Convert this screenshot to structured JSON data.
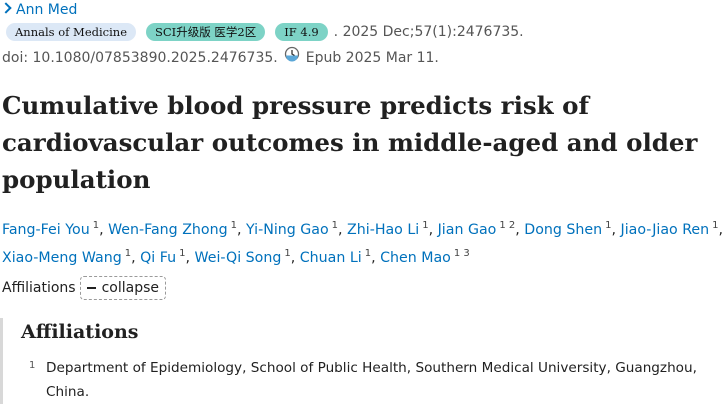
{
  "journal": {
    "link_text": "Ann Med"
  },
  "citation": {
    "badges": [
      "Annals of Medicine",
      "SCI升级版 医学2区",
      "IF 4.9"
    ],
    "text": ". 2025 Dec;57(1):2476735."
  },
  "doi": {
    "text": "doi: 10.1080/07853890.2025.2476735.",
    "epub": "Epub 2025 Mar 11."
  },
  "article": {
    "title": "Cumulative blood pressure predicts risk of cardiovascular outcomes in middle-aged and older population"
  },
  "authors": [
    {
      "name": "Fang-Fei You",
      "sup": "1"
    },
    {
      "name": "Wen-Fang Zhong",
      "sup": "1"
    },
    {
      "name": "Yi-Ning Gao",
      "sup": "1"
    },
    {
      "name": "Zhi-Hao Li",
      "sup": "1"
    },
    {
      "name": "Jian Gao",
      "sup": "1 2"
    },
    {
      "name": "Dong Shen",
      "sup": "1"
    },
    {
      "name": "Jiao-Jiao Ren",
      "sup": "1"
    },
    {
      "name": "Xiao-Meng Wang",
      "sup": "1"
    },
    {
      "name": "Qi Fu",
      "sup": "1"
    },
    {
      "name": "Wei-Qi Song",
      "sup": "1"
    },
    {
      "name": "Chuan Li",
      "sup": "1"
    },
    {
      "name": "Chen Mao",
      "sup": "1 3"
    }
  ],
  "affiliations": {
    "label": "Affiliations",
    "toggle_label": "collapse",
    "heading": "Affiliations",
    "items": [
      {
        "num": "1",
        "text": "Department of Epidemiology, School of Public Health, Southern Medical University, Guangzhou, China."
      }
    ]
  },
  "icons": {
    "epub": "epub-clock-icon",
    "journal": "chevron-right-icon",
    "toggle": "minus-icon"
  },
  "colors": {
    "link": "#0071bc",
    "badge_journal": "#dce8f6",
    "badge_teal": "#7dd3c6"
  }
}
